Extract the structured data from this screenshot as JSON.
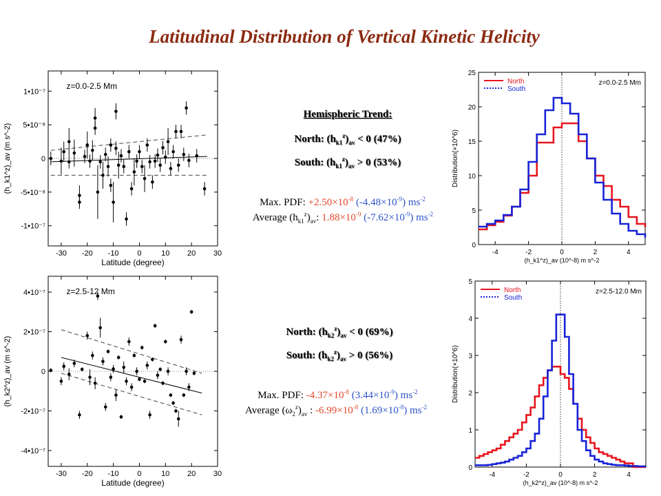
{
  "title": "Latitudinal Distribution of Vertical Kinetic Helicity",
  "upper_text": {
    "heading": "Hemispheric Trend:",
    "north": {
      "prefix": "North: (h",
      "sub": "k1",
      "sup": "z",
      "suffix": ")",
      "av": "av",
      "rel": "< 0  (47%)"
    },
    "south": {
      "prefix": "South: (h",
      "sub": "k1",
      "sup": "z",
      "suffix": ")",
      "av": "av",
      "rel": "> 0  (53%)"
    },
    "maxpdf": {
      "label": "Max. PDF:  ",
      "v1": "+2.50×10",
      "e1": "-8",
      "v2": " (-4.48×10",
      "e2": "-9",
      "v3": ")",
      "unit": " ms",
      "ue": "-2"
    },
    "average": {
      "label": "Average (h",
      "sub": "k1",
      "sup": "z",
      "rest": ")",
      "av": "av",
      "colon": ": ",
      "v1": "1.88×10",
      "e1": "-9",
      "v2": " (-7.62×10",
      "e2": "-9",
      "v3": ")",
      "unit": " ms",
      "ue": "-2"
    }
  },
  "lower_text": {
    "north": {
      "prefix": "North: (h",
      "sub": "k2",
      "sup": "z",
      "suffix": ")",
      "av": "av",
      "rel": "< 0  (69%)"
    },
    "south": {
      "prefix": "South: (h",
      "sub": "k2",
      "sup": "z",
      "suffix": ")",
      "av": "av",
      "rel": "> 0  (56%)"
    },
    "maxpdf": {
      "label": "Max. PDF:  ",
      "v1": "-4.37×10",
      "e1": "-8",
      "v2": " (3.44×10",
      "e2": "-9",
      "v3": ")",
      "unit": " ms",
      "ue": "-2"
    },
    "average": {
      "label": "Average (ω",
      "sub": "2",
      "sup": "z",
      "rest": ")",
      "av": "av",
      "colon": " : ",
      "v1": "-6.99×10",
      "e1": "-8",
      "v2": " (1.69×10",
      "e2": "-8",
      "v3": ")",
      "unit": " ms",
      "ue": "-2"
    }
  },
  "colors": {
    "title": "#8b2a12",
    "north": "#e8141d",
    "south": "#1722d8",
    "value_red": "#e2482a",
    "value_blue": "#2c53c8"
  },
  "chart_data": [
    {
      "type": "scatter",
      "id": "scatter-top",
      "annotation": "z=0.0-2.5 Mm",
      "xlabel": "Latitude (degree)",
      "ylabel": "(h_k1^z)_av (m s^-2)",
      "xlim": [
        -35,
        30
      ],
      "ylim": [
        -1.3e-07,
        1.3e-07
      ],
      "xticks": [
        -30,
        -20,
        -10,
        0,
        10,
        20,
        30
      ],
      "yticks": [
        -1e-07,
        -5e-08,
        0,
        5e-08,
        1e-07
      ],
      "ytick_labels": [
        "-1•10⁻⁷",
        "-5•10⁻⁸",
        "0",
        "5•10⁻⁸",
        "1•10⁻⁷"
      ],
      "points": [
        {
          "x": -34,
          "y": 0,
          "e": 1e-08
        },
        {
          "x": -30,
          "y": -4e-09,
          "e": 2e-08
        },
        {
          "x": -29,
          "y": 1e-08,
          "e": 1.5e-08
        },
        {
          "x": -27,
          "y": 2.5e-08,
          "e": 2e-08
        },
        {
          "x": -27,
          "y": -5e-09,
          "e": 1e-08
        },
        {
          "x": -25,
          "y": 8e-09,
          "e": 2e-08
        },
        {
          "x": -23,
          "y": -5.5e-08,
          "e": 1.5e-08
        },
        {
          "x": -23,
          "y": -6.5e-08,
          "e": 1e-08
        },
        {
          "x": -21,
          "y": 3e-09,
          "e": 1e-08
        },
        {
          "x": -20,
          "y": 2e-08,
          "e": 2e-08
        },
        {
          "x": -19,
          "y": -4e-09,
          "e": 1e-08
        },
        {
          "x": -18,
          "y": 1.2e-08,
          "e": 1.5e-08
        },
        {
          "x": -17,
          "y": 6e-08,
          "e": 1.5e-08
        },
        {
          "x": -17,
          "y": 4.5e-08,
          "e": 1e-08
        },
        {
          "x": -16,
          "y": -5e-08,
          "e": 4e-08
        },
        {
          "x": -15,
          "y": -5e-09,
          "e": 1e-08
        },
        {
          "x": -14,
          "y": -2.5e-08,
          "e": 2e-08
        },
        {
          "x": -13,
          "y": 6e-09,
          "e": 1e-08
        },
        {
          "x": -12,
          "y": -1.2e-08,
          "e": 1.5e-08
        },
        {
          "x": -11,
          "y": 2e-08,
          "e": 1e-08
        },
        {
          "x": -11,
          "y": -4e-08,
          "e": 1e-08
        },
        {
          "x": -10,
          "y": -6.5e-08,
          "e": 3e-08
        },
        {
          "x": -9,
          "y": 1.5e-08,
          "e": 1e-08
        },
        {
          "x": -9,
          "y": 7e-08,
          "e": 1.2e-08
        },
        {
          "x": -8,
          "y": -1e-08,
          "e": 2e-08
        },
        {
          "x": -7,
          "y": 4e-09,
          "e": 1e-08
        },
        {
          "x": -6,
          "y": -1.2e-08,
          "e": 1e-08
        },
        {
          "x": -5,
          "y": -9e-08,
          "e": 1e-08
        },
        {
          "x": -4,
          "y": 1e-08,
          "e": 1e-08
        },
        {
          "x": -3,
          "y": -4.5e-08,
          "e": 1e-08
        },
        {
          "x": -2,
          "y": -2e-08,
          "e": 2e-08
        },
        {
          "x": -1,
          "y": -4e-09,
          "e": 1e-08
        },
        {
          "x": 0,
          "y": 1e-08,
          "e": 1e-08
        },
        {
          "x": 1,
          "y": -1.2e-08,
          "e": 1e-08
        },
        {
          "x": 2,
          "y": -3e-08,
          "e": 2e-08
        },
        {
          "x": 3,
          "y": 2e-08,
          "e": 1e-08
        },
        {
          "x": 4,
          "y": -5e-09,
          "e": 1e-08
        },
        {
          "x": 5,
          "y": -3.5e-08,
          "e": 1e-08
        },
        {
          "x": 6,
          "y": -4e-09,
          "e": 1e-08
        },
        {
          "x": 7,
          "y": 5e-09,
          "e": 1e-08
        },
        {
          "x": 8,
          "y": -1e-08,
          "e": 1e-08
        },
        {
          "x": 9,
          "y": 1.6e-08,
          "e": 1e-08
        },
        {
          "x": 10,
          "y": 2e-09,
          "e": 1e-08
        },
        {
          "x": 11,
          "y": 2.5e-08,
          "e": 2e-08
        },
        {
          "x": 12,
          "y": -1.5e-08,
          "e": 1e-08
        },
        {
          "x": 13,
          "y": 1e-08,
          "e": 1e-08
        },
        {
          "x": 14,
          "y": 4e-08,
          "e": 1e-08
        },
        {
          "x": 15,
          "y": -1e-08,
          "e": 1e-08
        },
        {
          "x": 16,
          "y": 4e-08,
          "e": 1e-08
        },
        {
          "x": 17,
          "y": 6e-09,
          "e": 1e-08
        },
        {
          "x": 18,
          "y": 7.5e-08,
          "e": 1e-08
        },
        {
          "x": 19,
          "y": -3e-09,
          "e": 1e-08
        },
        {
          "x": 22,
          "y": 4e-09,
          "e": 1e-08
        },
        {
          "x": 25,
          "y": -4.5e-08,
          "e": 1e-08
        }
      ],
      "fit_line": [
        [
          -34,
          -5e-09
        ],
        [
          26,
          3e-09
        ]
      ],
      "bound_lines": [
        [
          [
            -34,
            1.2e-08
          ],
          [
            26,
            3.5e-08
          ]
        ],
        [
          [
            -34,
            -2.5e-08
          ],
          [
            26,
            -2.5e-08
          ]
        ]
      ]
    },
    {
      "type": "scatter",
      "id": "scatter-bottom",
      "annotation": "z=2.5-12 Mm",
      "xlabel": "Latitude (degree)",
      "ylabel": "(h_k2^z)_av (m s^-2)",
      "xlim": [
        -35,
        30
      ],
      "ylim": [
        -4.8e-07,
        4.8e-07
      ],
      "xticks": [
        -30,
        -20,
        -10,
        0,
        10,
        20,
        30
      ],
      "yticks": [
        -4e-07,
        -2e-07,
        0,
        2e-07,
        4e-07
      ],
      "ytick_labels": [
        "-4•10⁻⁷",
        "-2•10⁻⁷",
        "0",
        "2•10⁻⁷",
        "4•10⁻⁷"
      ],
      "points": [
        {
          "x": -34,
          "y": 5e-09,
          "e": 1e-08
        },
        {
          "x": -30,
          "y": -5e-08,
          "e": 2e-08
        },
        {
          "x": -29,
          "y": 2.5e-08,
          "e": 2e-08
        },
        {
          "x": -27,
          "y": -1.5e-08,
          "e": 3e-08
        },
        {
          "x": -25,
          "y": 4e-08,
          "e": 2e-08
        },
        {
          "x": -23,
          "y": -2.2e-07,
          "e": 2e-08
        },
        {
          "x": -22,
          "y": 1e-08,
          "e": 1e-08
        },
        {
          "x": -20,
          "y": 1.8e-07,
          "e": 2e-08
        },
        {
          "x": -19,
          "y": -3e-08,
          "e": 4e-08
        },
        {
          "x": -18,
          "y": 8e-08,
          "e": 2e-08
        },
        {
          "x": -17,
          "y": -6e-08,
          "e": 3e-08
        },
        {
          "x": -16,
          "y": 3.8e-07,
          "e": 2e-08
        },
        {
          "x": -15,
          "y": 2.2e-07,
          "e": 5e-08
        },
        {
          "x": -14,
          "y": 5e-08,
          "e": 2e-08
        },
        {
          "x": -13,
          "y": -1.8e-07,
          "e": 2e-08
        },
        {
          "x": -12,
          "y": 1e-07,
          "e": 1e-08
        },
        {
          "x": -11,
          "y": -3e-08,
          "e": 2e-08
        },
        {
          "x": -10,
          "y": 1.2e-08,
          "e": 2e-08
        },
        {
          "x": -9,
          "y": -1.2e-07,
          "e": 3e-08
        },
        {
          "x": -8,
          "y": 7e-08,
          "e": 1e-08
        },
        {
          "x": -7,
          "y": -2.3e-07,
          "e": 1e-08
        },
        {
          "x": -6,
          "y": 2e-08,
          "e": 3e-08
        },
        {
          "x": -5,
          "y": -5e-08,
          "e": 2e-08
        },
        {
          "x": -4,
          "y": 1.5e-07,
          "e": 2e-08
        },
        {
          "x": -3,
          "y": -8e-08,
          "e": 2e-08
        },
        {
          "x": -2,
          "y": 8e-08,
          "e": 1e-08
        },
        {
          "x": -1,
          "y": 0,
          "e": 2e-08
        },
        {
          "x": 0,
          "y": -4e-08,
          "e": 1e-08
        },
        {
          "x": 1,
          "y": 1.2e-07,
          "e": 1e-08
        },
        {
          "x": 2,
          "y": -5e-08,
          "e": 1e-08
        },
        {
          "x": 3,
          "y": 3e-08,
          "e": 2e-08
        },
        {
          "x": 4,
          "y": -2.2e-07,
          "e": 2e-08
        },
        {
          "x": 5,
          "y": 6e-08,
          "e": 1e-08
        },
        {
          "x": 6,
          "y": 2.3e-07,
          "e": 1e-08
        },
        {
          "x": 7,
          "y": -2e-08,
          "e": 2e-08
        },
        {
          "x": 8,
          "y": 1e-08,
          "e": 1e-08
        },
        {
          "x": 9,
          "y": -6e-08,
          "e": 1e-08
        },
        {
          "x": 10,
          "y": 1.5e-07,
          "e": 1e-08
        },
        {
          "x": 11,
          "y": 0,
          "e": 2e-08
        },
        {
          "x": 12,
          "y": -1.2e-07,
          "e": 1e-08
        },
        {
          "x": 13,
          "y": -1.6e-07,
          "e": 1e-08
        },
        {
          "x": 14,
          "y": -2e-07,
          "e": 1e-08
        },
        {
          "x": 15,
          "y": -2.4e-07,
          "e": 4e-08
        },
        {
          "x": 16,
          "y": 1.6e-07,
          "e": 2e-08
        },
        {
          "x": 17,
          "y": -1.2e-07,
          "e": 1e-08
        },
        {
          "x": 18,
          "y": 0,
          "e": 2e-08
        },
        {
          "x": 19,
          "y": -8e-08,
          "e": 2e-08
        },
        {
          "x": 20,
          "y": 3e-07,
          "e": 1e-08
        },
        {
          "x": 21,
          "y": -1e-08,
          "e": 1e-08
        }
      ],
      "fit_line": [
        [
          -30,
          7e-08
        ],
        [
          24,
          -1.1e-07
        ]
      ],
      "bound_lines": [
        [
          [
            -30,
            2.1e-07
          ],
          [
            24,
            -1e-08
          ]
        ],
        [
          [
            -30,
            -1e-08
          ],
          [
            24,
            -2.2e-07
          ]
        ]
      ]
    },
    {
      "type": "line",
      "id": "hist-top",
      "step": true,
      "annotation": "z=0.0-2.5 Mm",
      "xlabel": "(h_k1^z)_av (10^-8) m s^-2",
      "ylabel": "Distribution(×10^6)",
      "xlim": [
        -5,
        5
      ],
      "ylim": [
        0,
        25
      ],
      "xticks": [
        -4,
        -2,
        0,
        2,
        4
      ],
      "yticks": [
        0,
        5,
        10,
        15,
        20,
        25
      ],
      "legend_position": "top-left",
      "edges": [
        -5,
        -4.5,
        -4,
        -3.5,
        -3,
        -2.5,
        -2,
        -1.5,
        -1,
        -0.5,
        0,
        0.5,
        1,
        1.5,
        2,
        2.5,
        3,
        3.5,
        4,
        4.5,
        5
      ],
      "series": [
        {
          "name": "North",
          "style": "solid",
          "values": [
            2.2,
            2.8,
            3.3,
            4.2,
            5.5,
            7.5,
            10,
            14.8,
            14.8,
            17,
            17.6,
            17.6,
            15,
            12.5,
            10,
            8.5,
            6.5,
            5.5,
            4,
            3,
            2.5
          ]
        },
        {
          "name": "South",
          "style": "dotted",
          "values": [
            2.6,
            3,
            3.5,
            4.3,
            5.5,
            8,
            12,
            16,
            19.5,
            21.3,
            20.5,
            19,
            16,
            12.5,
            9,
            6.5,
            4.5,
            3,
            2,
            1.5,
            1
          ]
        }
      ]
    },
    {
      "type": "line",
      "id": "hist-bottom",
      "step": true,
      "annotation": "z=2.5-12.0 Mm",
      "xlabel": "(h_k2^z)_av (10^-8) m s^-2",
      "ylabel": "Distribution(×10^6)",
      "xlim": [
        -5,
        5
      ],
      "ylim": [
        0,
        5
      ],
      "xticks": [
        -4,
        -2,
        0,
        2,
        4
      ],
      "yticks": [
        0,
        1,
        2,
        3,
        4,
        5
      ],
      "legend_position": "top-left",
      "edges": [
        -5,
        -4.75,
        -4.5,
        -4.25,
        -4,
        -3.75,
        -3.5,
        -3.25,
        -3,
        -2.75,
        -2.5,
        -2.25,
        -2,
        -1.75,
        -1.5,
        -1.25,
        -1,
        -0.75,
        -0.5,
        -0.25,
        0,
        0.25,
        0.5,
        0.75,
        1,
        1.25,
        1.5,
        1.75,
        2,
        2.25,
        2.5,
        2.75,
        3,
        3.25,
        3.5,
        3.75,
        4,
        4.25,
        4.5,
        4.75,
        5
      ],
      "series": [
        {
          "name": "North",
          "style": "solid",
          "values": [
            0.25,
            0.3,
            0.35,
            0.4,
            0.45,
            0.5,
            0.6,
            0.7,
            0.8,
            0.9,
            1.0,
            1.2,
            1.4,
            1.6,
            1.9,
            2.2,
            2.4,
            2.6,
            2.7,
            2.7,
            2.5,
            2.4,
            2.1,
            1.7,
            1.3,
            1.0,
            0.8,
            0.65,
            0.5,
            0.4,
            0.35,
            0.3,
            0.25,
            0.2,
            0.15,
            0.1,
            0.1,
            0,
            0,
            0
          ]
        },
        {
          "name": "South",
          "style": "dotted",
          "values": [
            0.05,
            0.05,
            0.05,
            0.06,
            0.08,
            0.1,
            0.12,
            0.15,
            0.2,
            0.25,
            0.3,
            0.4,
            0.5,
            0.7,
            0.9,
            1.3,
            1.9,
            2.6,
            3.4,
            4.1,
            4.1,
            3.5,
            2.5,
            1.7,
            1.0,
            0.7,
            0.45,
            0.3,
            0.2,
            0.15,
            0.1,
            0.08,
            0.06,
            0.05,
            0.05,
            0.04,
            0.03,
            0.03,
            0.02,
            0.02
          ]
        }
      ]
    }
  ]
}
